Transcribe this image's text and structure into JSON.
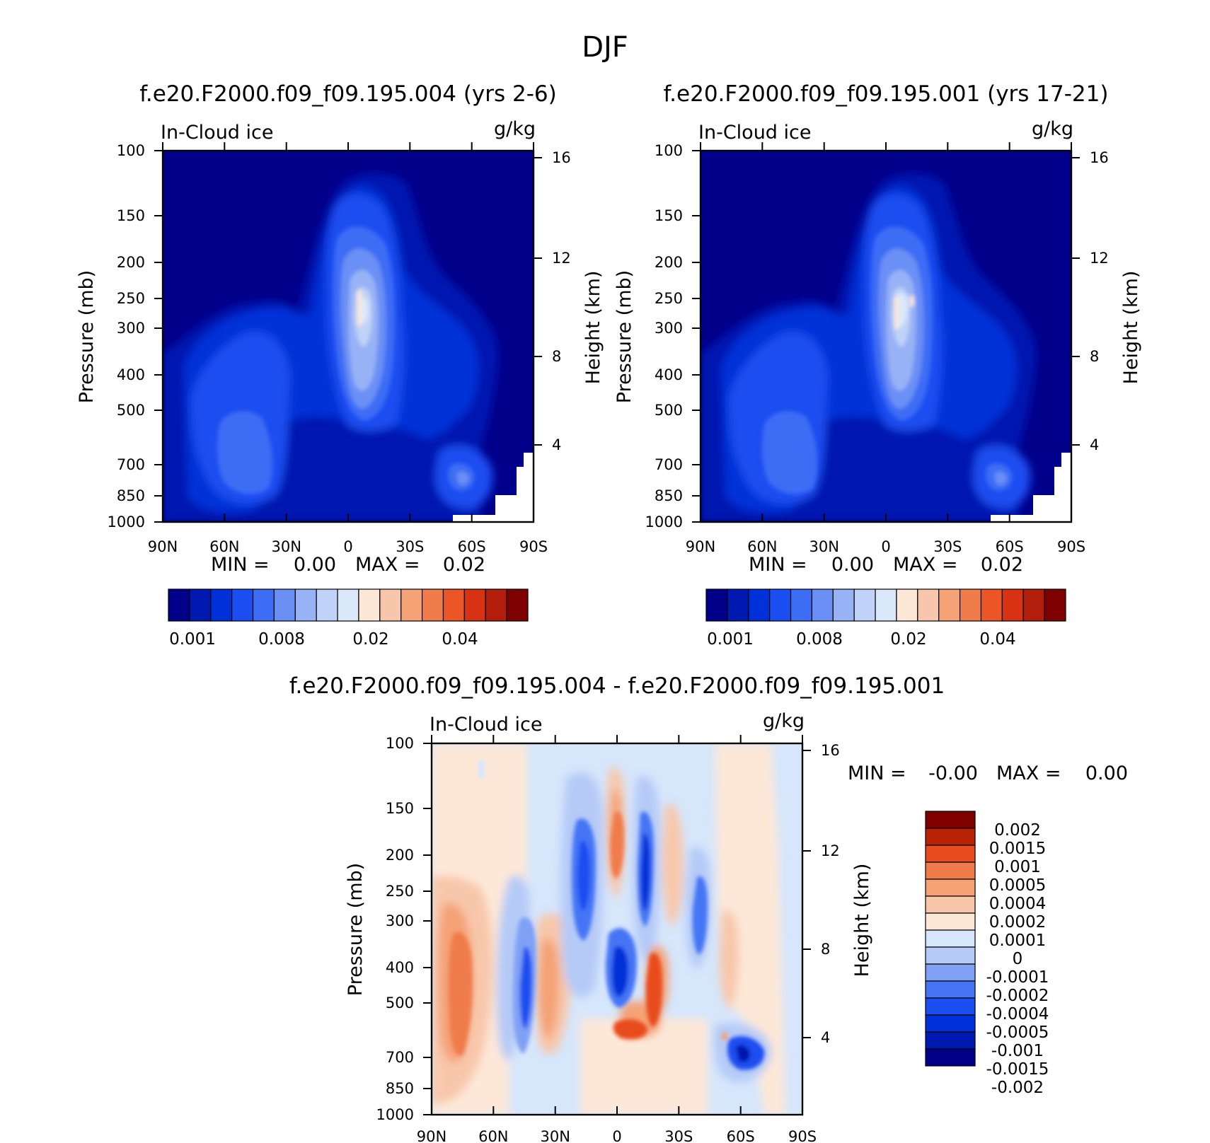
{
  "figure_title": "DJF",
  "colors": {
    "sequential": [
      "#00008a",
      "#0019b0",
      "#0030d8",
      "#1a4ef0",
      "#3d6cf5",
      "#6a8ff5",
      "#98b2f6",
      "#c0d2f7",
      "#dae8fa",
      "#fde8d8",
      "#f8c7ab",
      "#f4a276",
      "#f07b4b",
      "#ec5526",
      "#d83214",
      "#b31d0b",
      "#7f0000"
    ],
    "diverging": [
      "#00008a",
      "#0019b0",
      "#0030d8",
      "#1a4ef0",
      "#4575f5",
      "#7fa0f5",
      "#b5caf7",
      "#d6e6fb",
      "#fde8d8",
      "#f8c7ab",
      "#f4a276",
      "#f07b4b",
      "#e84c1e",
      "#b82305",
      "#800000"
    ]
  },
  "chart_data": [
    {
      "id": "panel1",
      "type": "contour",
      "title": "f.e20.F2000.f09_f09.195.004 (yrs 2-6)",
      "variable": "In-Cloud ice",
      "units": "g/kg",
      "ylabel": "Pressure (mb)",
      "ylabel2": "Height (km)",
      "x_ticks": [
        "90N",
        "60N",
        "30N",
        "0",
        "30S",
        "60S",
        "90S"
      ],
      "y_ticks": [
        "100",
        "150",
        "200",
        "250",
        "300",
        "400",
        "500",
        "700",
        "850",
        "1000"
      ],
      "y2_ticks": [
        "16",
        "12",
        "8",
        "4"
      ],
      "stats": {
        "min_label": "MIN =",
        "min": "0.00",
        "max_label": "MAX =",
        "max": "0.02"
      },
      "colorbar_labels": [
        "0.001",
        "0.008",
        "0.02",
        "0.04"
      ]
    },
    {
      "id": "panel2",
      "type": "contour",
      "title": "f.e20.F2000.f09_f09.195.001 (yrs 17-21)",
      "variable": "In-Cloud ice",
      "units": "g/kg",
      "ylabel": "Pressure (mb)",
      "ylabel2": "Height (km)",
      "x_ticks": [
        "90N",
        "60N",
        "30N",
        "0",
        "30S",
        "60S",
        "90S"
      ],
      "y_ticks": [
        "100",
        "150",
        "200",
        "250",
        "300",
        "400",
        "500",
        "700",
        "850",
        "1000"
      ],
      "y2_ticks": [
        "16",
        "12",
        "8",
        "4"
      ],
      "stats": {
        "min_label": "MIN =",
        "min": "0.00",
        "max_label": "MAX =",
        "max": "0.02"
      },
      "colorbar_labels": [
        "0.001",
        "0.008",
        "0.02",
        "0.04"
      ]
    },
    {
      "id": "panel3",
      "type": "contour",
      "title": "f.e20.F2000.f09_f09.195.004 - f.e20.F2000.f09_f09.195.001",
      "variable": "In-Cloud ice",
      "units": "g/kg",
      "ylabel": "Pressure (mb)",
      "ylabel2": "Height (km)",
      "x_ticks": [
        "90N",
        "60N",
        "30N",
        "0",
        "30S",
        "60S",
        "90S"
      ],
      "y_ticks": [
        "100",
        "150",
        "200",
        "250",
        "300",
        "400",
        "500",
        "700",
        "850",
        "1000"
      ],
      "y2_ticks": [
        "16",
        "12",
        "8",
        "4"
      ],
      "stats": {
        "min_label": "MIN =",
        "min": "-0.00",
        "max_label": "MAX =",
        "max": "0.00"
      },
      "colorbar_labels": [
        "0.002",
        "0.0015",
        "0.001",
        "0.0005",
        "0.0004",
        "0.0002",
        "0.0001",
        "0",
        "-0.0001",
        "-0.0002",
        "-0.0004",
        "-0.0005",
        "-0.001",
        "-0.0015",
        "-0.002"
      ]
    }
  ]
}
